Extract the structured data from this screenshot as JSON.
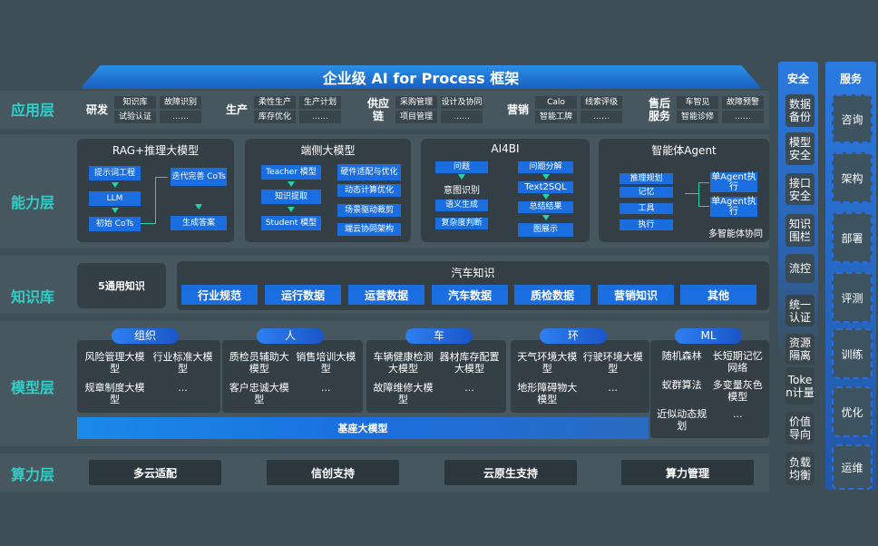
{
  "title": "企业级 AI for Process 框架",
  "layers": {
    "app": "应用层",
    "capability": "能力层",
    "knowledge": "知识库",
    "model": "模型层",
    "compute": "算力层"
  },
  "app_groups": [
    {
      "name": "研发",
      "items": [
        "知识库",
        "故障识别",
        "试验认证",
        "……"
      ]
    },
    {
      "name": "生产",
      "items": [
        "柔性生产",
        "生产计划",
        "库存优化",
        "……"
      ]
    },
    {
      "name": "供应链",
      "items": [
        "采购管理",
        "设计及协同",
        "项目管理",
        "……"
      ]
    },
    {
      "name": "营销",
      "items": [
        "Calo",
        "线索评级",
        "智能工牌",
        "……"
      ]
    },
    {
      "name": "售后服务",
      "items": [
        "车智见",
        "故障预警",
        "智能诊修",
        "……"
      ]
    }
  ],
  "capability": {
    "rag": {
      "title": "RAG+推理大模型",
      "items": [
        "提示词工程",
        "LLM",
        "初始 CoTs",
        "迭代完善 CoTs",
        "生成答案"
      ]
    },
    "edge": {
      "title": "端侧大模型",
      "items": [
        "Teacher 模型",
        "知识提取",
        "Student 模型",
        "硬件适配与优化",
        "动态计算优化",
        "场景驱动裁剪",
        "端云协同架构"
      ]
    },
    "ai4bi": {
      "title": "AI4BI",
      "items": [
        "问题",
        "意图识别",
        "语义生成",
        "复杂度判断",
        "问题分解",
        "Text2SQL",
        "总结结果",
        "图展示"
      ]
    },
    "agent": {
      "title": "智能体Agent",
      "items": [
        "推理规划",
        "记忆",
        "工具",
        "执行",
        "单Agent执行",
        "单Agent执行",
        "多智能体协同"
      ]
    }
  },
  "knowledge": {
    "general": "5通用知识",
    "auto_title": "汽车知识",
    "items": [
      "行业规范",
      "运行数据",
      "运营数据",
      "汽车数据",
      "质检数据",
      "营销知识",
      "其他"
    ]
  },
  "model_groups": [
    {
      "name": "组织",
      "items": [
        "风险管理大模型",
        "行业标准大模型",
        "规章制度大模型",
        "..."
      ]
    },
    {
      "name": "人",
      "items": [
        "质检员辅助大模型",
        "销售培训大模型",
        "客户忠诚大模型",
        "..."
      ]
    },
    {
      "name": "车",
      "items": [
        "车辆健康检测大模型",
        "器材库存配置大模型",
        "故障维修大模型",
        "..."
      ]
    },
    {
      "name": "环",
      "items": [
        "天气环境大模型",
        "行驶环境大模型",
        "地形障碍物大模型",
        "..."
      ]
    },
    {
      "name": "ML",
      "items": [
        "随机森林",
        "长短期记忆网络",
        "蚁群算法",
        "多变量灰色模型",
        "近似动态规划",
        "..."
      ]
    }
  ],
  "base_model": "基座大模型",
  "compute": [
    "多云适配",
    "信创支持",
    "云原生支持",
    "算力管理"
  ],
  "security": {
    "title": "安全",
    "items": [
      "数据备份",
      "模型安全",
      "接口安全",
      "知识围栏",
      "流控",
      "统一认证",
      "资源隔离",
      "Token计量",
      "价值导向",
      "负载均衡"
    ]
  },
  "service": {
    "title": "服务",
    "items": [
      "咨询",
      "架构",
      "部署",
      "评测",
      "训练",
      "优化",
      "运维"
    ]
  },
  "colors": {
    "background": "#3d4e56",
    "accent_blue": "#1a6ee0",
    "layer_label": "#2fd0c8",
    "arrow": "#22d3a6"
  }
}
